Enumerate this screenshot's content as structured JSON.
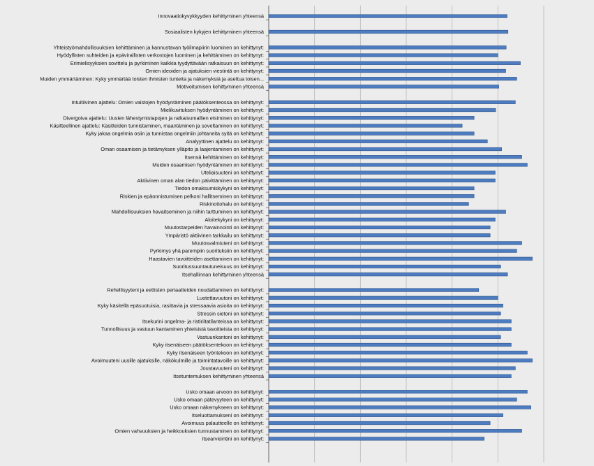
{
  "chart_data": {
    "type": "bar",
    "orientation": "horizontal",
    "title": "",
    "xlabel": "",
    "ylabel": "",
    "xlim": [
      0,
      6
    ],
    "grid": true,
    "legend": "none",
    "colors": {
      "bar": "#4d7cc1",
      "bar_edge": "#2d5288",
      "gridline": "#b8b8b8",
      "background": "#ececec"
    },
    "categories": [
      "Innovaatiokyvykkyyden kehittyminen yhteensä",
      "Sosiaalisten kykyjen kehittyminen yhteensä",
      "Yhteistyömahdollisuuksien kehittäminen ja kannustavan työilmapiirin luominen  on kehittynyt:",
      "Hyödyllisten suhteiden ja epävirallisten verkostojen luominen ja kehittäminen on kehittynyt:",
      "Erimielisyyksien sovittelu ja pyrkiminen kaikkia tyydyttävään ratkaisuun on kehittynyt:",
      "Omien ideoiden ja ajatuksien viestintä on kehittynyt:",
      "Muiden ymmärtäminen: Kyky ymmärtää toisten ihmisten tunteita ja näkemyksiä ja asettua toisen...",
      "Motivoitumisen kehittyminen yhteensä",
      "Intuitiivinen ajattelu: Omien vaistojen hyödyntäminen päätöksenteossa on kehittynyt:",
      "Mielikuvituksen hyödyntäminen on kehittynyt:",
      "Divergoiva ajattelu: Uusien lähestymistapojen ja ratkaisumallien etsiminen on kehittynyt:",
      "Käsitteellinen ajattelu: Käsitteiden tunnistaminen, maantäminen ja soveltaminen on kehittynyt:",
      "Kyky jakaa ongelmia osiin ja tunnistaa ongelmiin johtaneita syitä on kehittynyt:",
      "Analyyttinen ajattelu on kehittynyt:",
      "Oman osaamisen ja tietämyksen ylläpito ja laajentaminen on kehittynyt:",
      "Itsensä kehittäminen on kehittynyt:",
      "Muiden osaamisen hyödyntäminen on kehittynyt:",
      "Uteliaisuuteni on kehittynyt:",
      "Aktiivinen oman alan tiedon päivittäminen on kehittynyt:",
      "Tiedon omaksumiskykyni on kehittynyt:",
      "Riskien ja epäonnistumisen pelkoni hallitseminen on kehittynyt:",
      "Riskinottohalu on kehittynyt:",
      "Mahdollisuuksien havaitseminen ja niihin tarttuminen on kehittynyt:",
      "Aloitekykyni on kehittynyt:",
      "Muutostarpeiden havainnointi on kehittynyt:",
      "Ympäristö aktiivinen tarkkailu on kehittynyt:",
      "Muutosvalmiuteni on kehittynyt:",
      "Pyrkimys yhä parempiin suorituksiin on kehittynyt:",
      "Haastavien tavoitteiden asettaminen on kehittynyt:",
      "Suoritussuuntautuneisuus on kehittynyt:",
      "Itsehallinnan kehittyminen yhteensä",
      "Rehellisyyteni ja eettisten periaatteiden noudattaminen on kehittynyt:",
      "Luotettavuutoni on kehittynyt:",
      "Kyky käsitellä epäsuotuisia, rasittavia ja stressaavia asioita on kehittynyt:",
      "Stressin sietoni on kehittynyt:",
      "Itsekurini ongelma- ja ristiriitatilanteissa on kehittynyt:",
      "Tunnollisuus ja vastuun kantaminen yhteisistä tavoitteista on kehittynyt:",
      "Vastuunkantoni on kehittynyt:",
      "Kyky itsenäiseen päätöksentekoon on kehittynyt:",
      "Kyky itsenäiseen työntekoon on kehittynyt:",
      "Avoimuuteni uusille ajatuksille, näkökulmille ja toimintatavoille on kehittynyt:",
      "Joustavuuteni on kehittynyt:",
      "Itsetuntemuksen kehittyminen yhteensä",
      "Usko omaan arvoon on kehittynyt:",
      "Usko omaan pätevyyteen on kehittynyt:",
      "Usko omaan näkemykseen on kehittynyt:",
      "Itseluottamukseni on kehittynyt:",
      "Avoimuus palautteelle on kehittynyt:",
      "Omien vahvuuksien ja heikkouksien tunnustaminen on kehittynyt:",
      "Itsearviointini on kehittynyt:"
    ],
    "values": [
      5.2,
      5.22,
      5.18,
      5.0,
      5.49,
      5.17,
      5.41,
      5.02,
      5.38,
      4.95,
      4.48,
      4.22,
      4.48,
      4.77,
      5.08,
      5.52,
      5.64,
      4.94,
      4.94,
      4.48,
      4.48,
      4.36,
      5.17,
      4.94,
      4.83,
      4.83,
      5.52,
      5.41,
      5.75,
      5.06,
      5.21,
      4.58,
      5.0,
      5.11,
      5.06,
      5.29,
      5.29,
      5.06,
      5.29,
      5.64,
      5.75,
      5.38,
      5.29,
      5.64,
      5.41,
      5.72,
      5.11,
      4.83,
      5.52,
      4.7
    ]
  }
}
